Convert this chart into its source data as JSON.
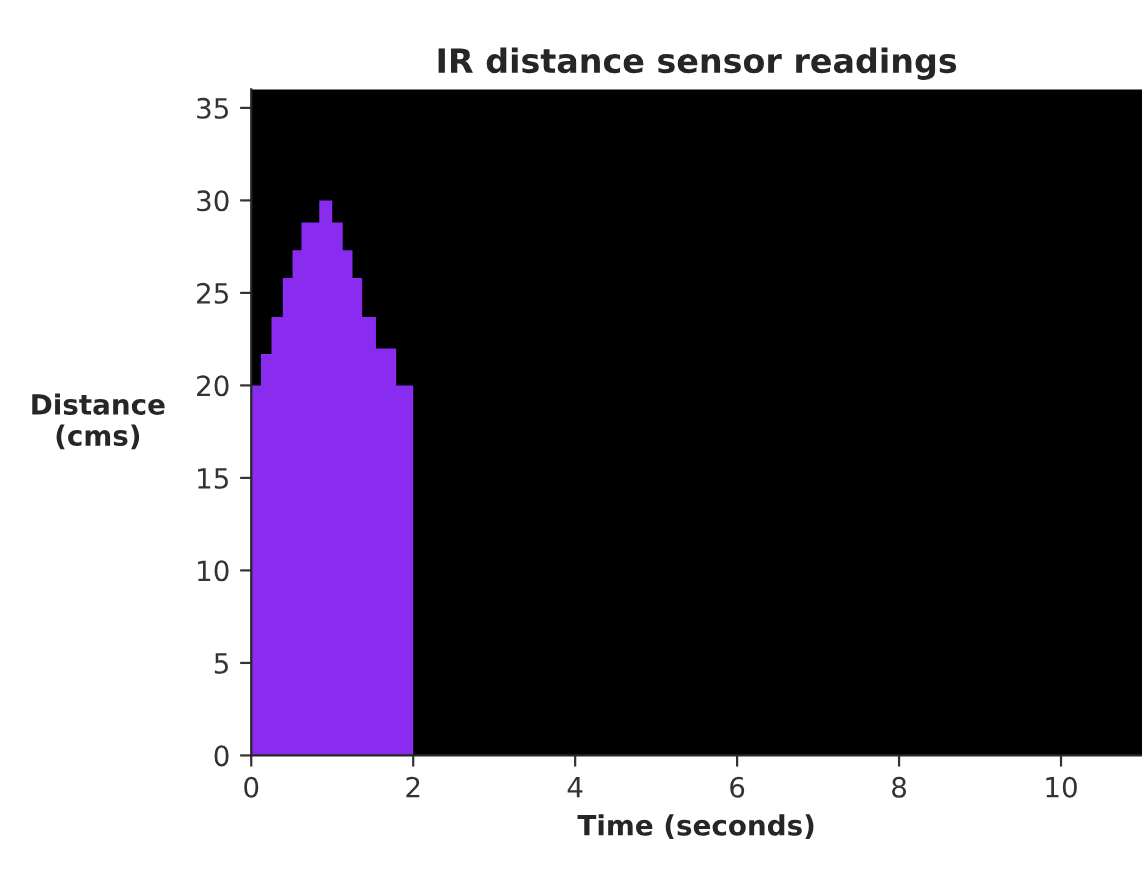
{
  "chart_data": {
    "type": "area",
    "title": "IR distance sensor readings",
    "xlabel": "Time (seconds)",
    "ylabel": "Distance\n(cms)",
    "x": [
      0,
      0.12,
      0.25,
      0.39,
      0.51,
      0.62,
      0.84,
      1.0,
      1.13,
      1.25,
      1.37,
      1.54,
      1.79,
      2.0
    ],
    "series": [
      {
        "color": "#8a2cf0",
        "values": [
          20,
          21.7,
          23.7,
          25.8,
          27.3,
          28.8,
          30,
          28.8,
          27.3,
          25.8,
          23.7,
          22,
          20,
          20
        ]
      }
    ],
    "xlim": [
      0,
      11
    ],
    "xticks": [
      0,
      2,
      4,
      6,
      8,
      10
    ],
    "ylim": [
      0,
      36
    ],
    "yticks": [
      0,
      5,
      10,
      15,
      20,
      25,
      30,
      35
    ],
    "grid": false
  }
}
